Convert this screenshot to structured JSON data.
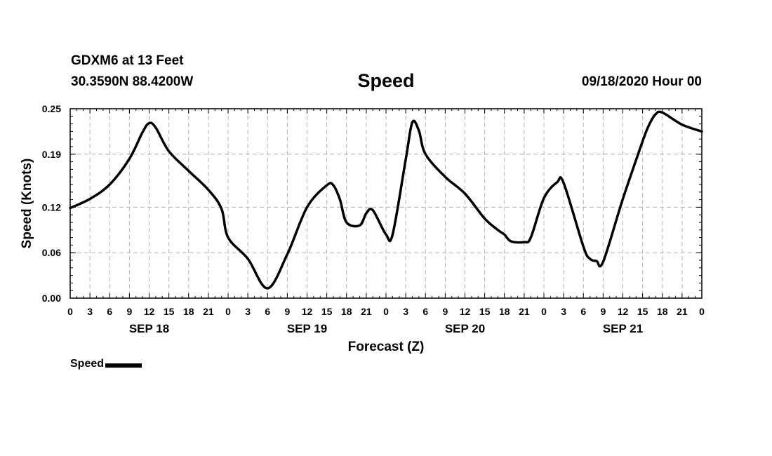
{
  "header": {
    "station": "GDXM6 at 13 Feet",
    "coordinates": "30.3590N 88.4200W",
    "title": "Speed",
    "date": "09/18/2020 Hour 00"
  },
  "legend": {
    "label": "Speed",
    "color": "#000000"
  },
  "chart_data": {
    "type": "line",
    "title": "Speed",
    "xlabel": "Forecast (Z)",
    "ylabel": "Speed (Knots)",
    "x_unit": "hours from 09/18/2020 00Z",
    "xlim": [
      0,
      96
    ],
    "ylim": [
      0,
      0.25
    ],
    "grid": true,
    "legend_position": "bottom-left",
    "y_ticks": [
      0.0,
      0.06,
      0.12,
      0.19,
      0.25
    ],
    "y_tick_labels": [
      "0.00",
      "0.06",
      "0.12",
      "0.19",
      "0.25"
    ],
    "x_tick_hours": [
      0,
      3,
      6,
      9,
      12,
      15,
      18,
      21,
      24,
      27,
      30,
      33,
      36,
      39,
      42,
      45,
      48,
      51,
      54,
      57,
      60,
      63,
      66,
      69,
      72,
      75,
      78,
      81,
      84,
      87,
      90,
      93,
      96
    ],
    "x_tick_labels": [
      "0",
      "3",
      "6",
      "9",
      "12",
      "15",
      "18",
      "21",
      "0",
      "3",
      "6",
      "9",
      "12",
      "15",
      "18",
      "21",
      "0",
      "3",
      "6",
      "9",
      "12",
      "15",
      "18",
      "21",
      "0",
      "3",
      "6",
      "9",
      "12",
      "15",
      "18",
      "21",
      "0"
    ],
    "day_labels": [
      {
        "label": "SEP 18",
        "hour": 12
      },
      {
        "label": "SEP 19",
        "hour": 36
      },
      {
        "label": "SEP 20",
        "hour": 60
      },
      {
        "label": "SEP 21",
        "hour": 84
      }
    ],
    "series": [
      {
        "name": "Speed",
        "color": "#000000",
        "x": [
          0,
          3,
          6,
          9,
          11,
          12,
          13,
          15,
          18,
          21,
          23,
          24,
          27,
          30,
          33,
          36,
          39,
          40,
          41,
          42,
          44,
          45,
          46,
          48,
          49,
          51,
          52,
          53,
          54,
          57,
          60,
          63,
          65,
          66,
          67,
          69,
          70,
          72,
          74,
          75,
          78,
          79,
          80,
          81,
          84,
          87,
          88,
          89,
          90,
          93,
          96
        ],
        "values": [
          0.119,
          0.131,
          0.15,
          0.184,
          0.219,
          0.231,
          0.225,
          0.194,
          0.168,
          0.143,
          0.118,
          0.08,
          0.052,
          0.013,
          0.058,
          0.12,
          0.149,
          0.149,
          0.13,
          0.1,
          0.096,
          0.112,
          0.116,
          0.084,
          0.084,
          0.183,
          0.232,
          0.221,
          0.19,
          0.16,
          0.138,
          0.105,
          0.09,
          0.084,
          0.075,
          0.074,
          0.08,
          0.132,
          0.153,
          0.152,
          0.068,
          0.052,
          0.049,
          0.048,
          0.131,
          0.207,
          0.229,
          0.243,
          0.245,
          0.229,
          0.22
        ]
      }
    ]
  }
}
